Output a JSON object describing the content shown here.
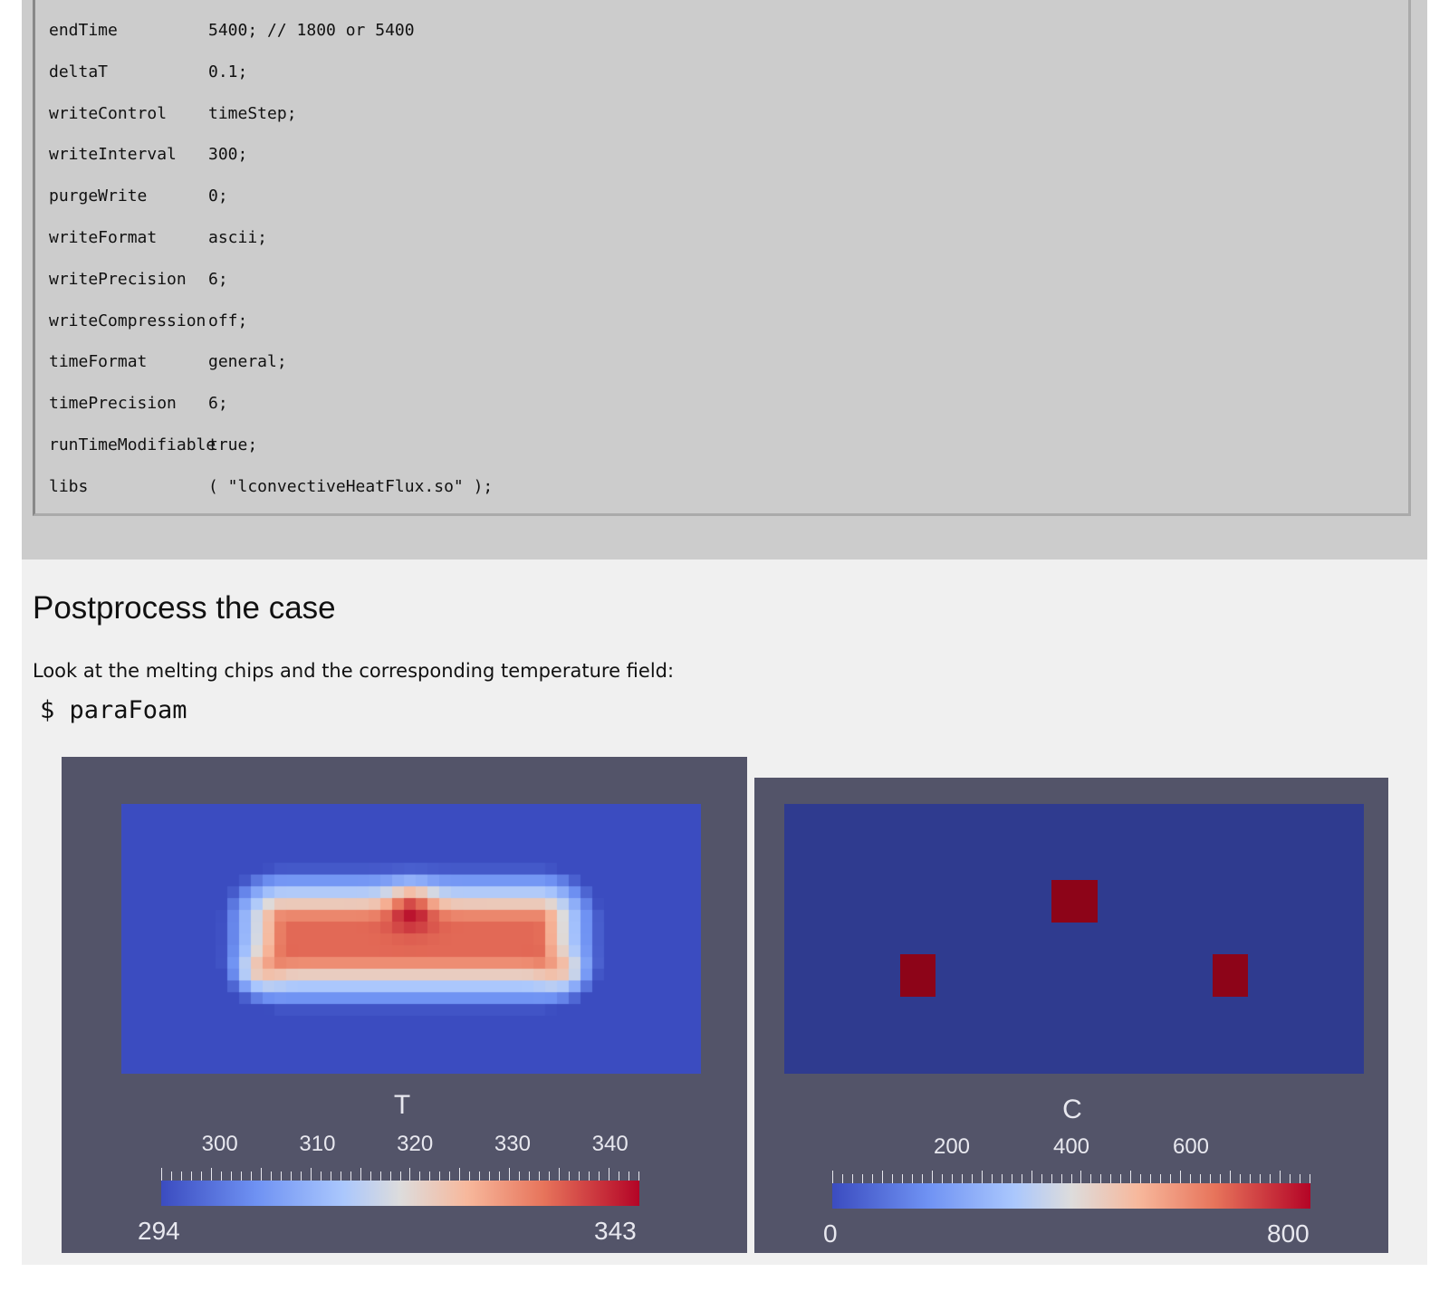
{
  "code": {
    "lines": [
      {
        "key": "endTime",
        "value": "5400; // 1800 or 5400"
      },
      {
        "key": "deltaT",
        "value": "0.1;"
      },
      {
        "key": "writeControl",
        "value": "timeStep;"
      },
      {
        "key": "writeInterval",
        "value": "300;"
      },
      {
        "key": "purgeWrite",
        "value": "0;"
      },
      {
        "key": "writeFormat",
        "value": "ascii;"
      },
      {
        "key": "writePrecision",
        "value": "6;"
      },
      {
        "key": "writeCompression",
        "value": "off;"
      },
      {
        "key": "timeFormat",
        "value": "general;"
      },
      {
        "key": "timePrecision",
        "value": "6;"
      },
      {
        "key": "runTimeModifiable",
        "value": "true;"
      },
      {
        "key": "libs",
        "value": "( \"lconvectiveHeatFlux.so\" );"
      }
    ]
  },
  "section": {
    "heading": "Postprocess the case",
    "paragraph": "Look at the melting chips and the corresponding temperature field:",
    "command": "$ paraFoam"
  },
  "figures": {
    "temperature": {
      "field_name": "T",
      "range_min": "294",
      "range_max": "343",
      "ticks": [
        "300",
        "310",
        "320",
        "330",
        "340"
      ],
      "colormap": [
        "#3b4cc0",
        "#b40426"
      ]
    },
    "concentration": {
      "field_name": "C",
      "range_min": "0",
      "range_max": "800",
      "ticks": [
        "200",
        "400",
        "600"
      ],
      "background_color": "#2f3b8f",
      "chip_color": "#8d0418"
    }
  }
}
